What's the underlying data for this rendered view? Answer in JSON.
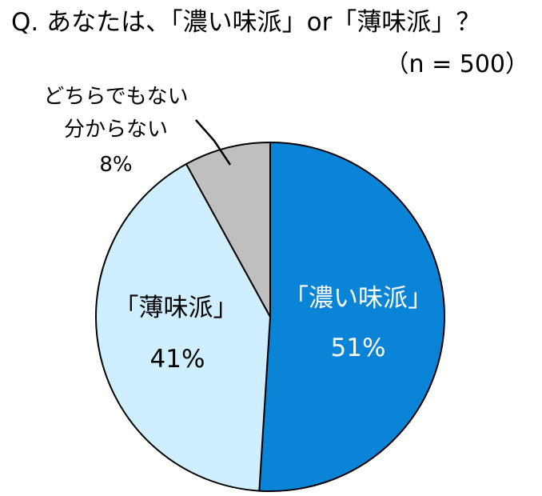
{
  "chart_data": {
    "type": "pie",
    "title": "Q. あなたは、「濃い味派」or「薄味派」？",
    "subtitle": "（n = 500）",
    "slices": [
      {
        "label": "「濃い味派」",
        "value": 51,
        "value_label": "51%",
        "color": "#0a84d6"
      },
      {
        "label": "「薄味派」",
        "value": 41,
        "value_label": "41%",
        "color": "#cfeeff"
      },
      {
        "label": [
          "どちらでもない",
          "分からない"
        ],
        "value": 8,
        "value_label": "8%",
        "color": "#bfbfbf"
      }
    ],
    "start_angle_deg": 0,
    "direction": "clockwise",
    "legend": "none"
  }
}
